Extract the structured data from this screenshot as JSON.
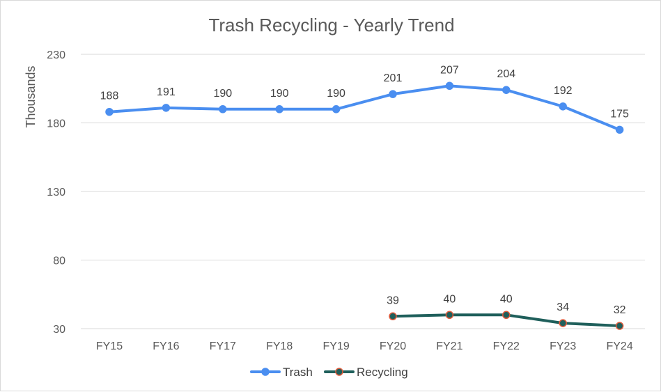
{
  "chart_data": {
    "type": "line",
    "title": "Trash Recycling - Yearly Trend",
    "xlabel": "",
    "ylabel": "Thousands",
    "categories": [
      "FY15",
      "FY16",
      "FY17",
      "FY18",
      "FY19",
      "FY20",
      "FY21",
      "FY22",
      "FY23",
      "FY24"
    ],
    "ylim": [
      30,
      230
    ],
    "yticks": [
      30,
      80,
      130,
      180,
      230
    ],
    "grid": true,
    "legend": "bottom",
    "series": [
      {
        "name": "Trash",
        "color": "#4a8ef0",
        "marker_fill": "#4a8ef0",
        "marker_stroke": "#4a8ef0",
        "values": [
          188,
          191,
          190,
          190,
          190,
          201,
          207,
          204,
          192,
          175
        ]
      },
      {
        "name": "Recycling",
        "color": "#1f5f5b",
        "marker_fill": "#1f5f5b",
        "marker_stroke": "#e05a3a",
        "values": [
          null,
          null,
          null,
          null,
          null,
          39,
          40,
          40,
          34,
          32
        ]
      }
    ]
  }
}
